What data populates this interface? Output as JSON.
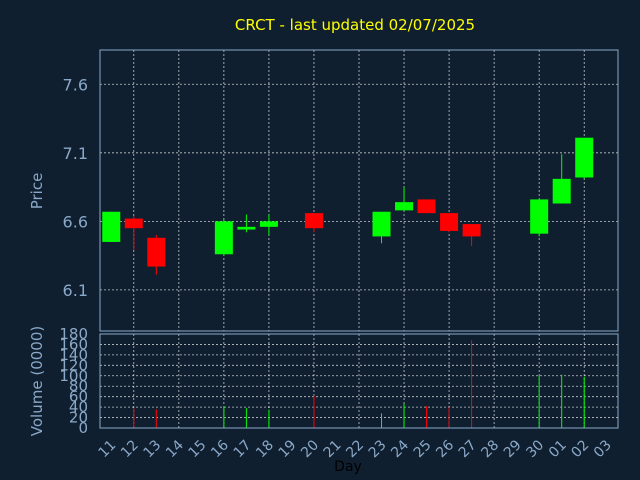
{
  "colors": {
    "background": "#0f1f2f",
    "title": "#ffff00",
    "axis_text": "#8aa8c8",
    "xlabel": "#000000",
    "frame": "#8aa8c8",
    "grid": "#ffffff",
    "up": "#00ff00",
    "down": "#ff0000"
  },
  "chart_data": {
    "type": "candlestick",
    "title": "CRCT - last updated 02/07/2025",
    "xlabel": "Day",
    "price_panel": {
      "ylabel": "Price",
      "ylim": [
        5.8,
        7.85
      ],
      "yticks": [
        6.1,
        6.6,
        7.1,
        7.6
      ],
      "ytick_labels": [
        "6.1",
        "6.6",
        "7.1",
        "7.6"
      ],
      "grid": true
    },
    "volume_panel": {
      "ylabel": "Volume (0000)",
      "ylim": [
        0,
        180
      ],
      "yticks": [
        0,
        20,
        40,
        60,
        80,
        100,
        120,
        140,
        160,
        180
      ],
      "ytick_labels": [
        "0",
        "20",
        "40",
        "60",
        "80",
        "100",
        "120",
        "140",
        "160",
        "180"
      ],
      "grid": true
    },
    "x_tick_labels": [
      "11",
      "12",
      "13",
      "14",
      "15",
      "16",
      "17",
      "18",
      "19",
      "20",
      "21",
      "22",
      "23",
      "24",
      "25",
      "26",
      "27",
      "28",
      "29",
      "30",
      "01",
      "02",
      "03"
    ],
    "candles": [
      {
        "x": "11",
        "open": 6.45,
        "close": 6.67,
        "high": 6.67,
        "low": 6.45,
        "volume": 0
      },
      {
        "x": "12",
        "open": 6.62,
        "close": 6.55,
        "high": 6.64,
        "low": 6.39,
        "volume": 38
      },
      {
        "x": "13",
        "open": 6.48,
        "close": 6.27,
        "high": 6.5,
        "low": 6.21,
        "volume": 36
      },
      {
        "x": "16",
        "open": 6.36,
        "close": 6.6,
        "high": 6.61,
        "low": 6.35,
        "volume": 42
      },
      {
        "x": "17",
        "open": 6.54,
        "close": 6.56,
        "high": 6.65,
        "low": 6.52,
        "volume": 38
      },
      {
        "x": "18",
        "open": 6.56,
        "close": 6.6,
        "high": 6.65,
        "low": 6.5,
        "volume": 35
      },
      {
        "x": "20",
        "open": 6.66,
        "close": 6.55,
        "high": 6.66,
        "low": 6.52,
        "volume": 62
      },
      {
        "x": "23",
        "open": 6.49,
        "close": 6.67,
        "high": 6.67,
        "low": 6.44,
        "volume": 28
      },
      {
        "x": "24",
        "open": 6.68,
        "close": 6.74,
        "high": 6.85,
        "low": 6.68,
        "volume": 46
      },
      {
        "x": "25",
        "open": 6.76,
        "close": 6.66,
        "high": 6.76,
        "low": 6.66,
        "volume": 42
      },
      {
        "x": "26",
        "open": 6.66,
        "close": 6.53,
        "high": 6.66,
        "low": 6.52,
        "volume": 40
      },
      {
        "x": "27",
        "open": 6.58,
        "close": 6.49,
        "high": 6.58,
        "low": 6.42,
        "volume": 168
      },
      {
        "x": "30",
        "open": 6.51,
        "close": 6.76,
        "high": 6.76,
        "low": 6.49,
        "volume": 100
      },
      {
        "x": "01",
        "open": 6.73,
        "close": 6.91,
        "high": 7.09,
        "low": 6.73,
        "volume": 102
      },
      {
        "x": "02",
        "open": 6.92,
        "close": 7.21,
        "high": 7.21,
        "low": 6.91,
        "volume": 98
      }
    ]
  }
}
